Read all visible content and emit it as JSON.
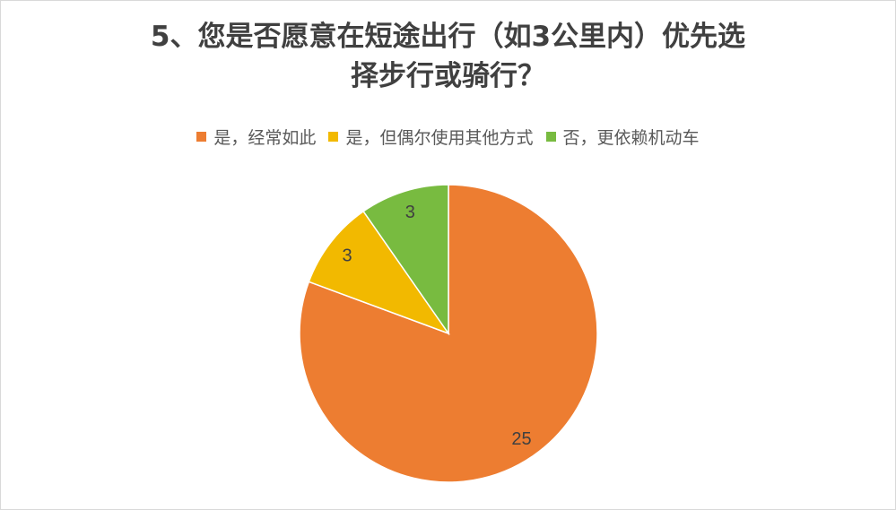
{
  "chart_data": {
    "type": "pie",
    "title_lines": [
      "5、您是否愿意在短途出行（如3公里内）优先选",
      "择步行或骑行？"
    ],
    "categories": [
      "是，经常如此",
      "是，但偶尔使用其他方式",
      "否，更依赖机动车"
    ],
    "values": [
      25,
      3,
      3
    ],
    "colors": [
      "#ED7D31",
      "#F2B900",
      "#78BB40"
    ],
    "data_labels": [
      "25",
      "3",
      "3"
    ],
    "legend_position": "top",
    "start_angle": "12 o'clock, clockwise"
  }
}
